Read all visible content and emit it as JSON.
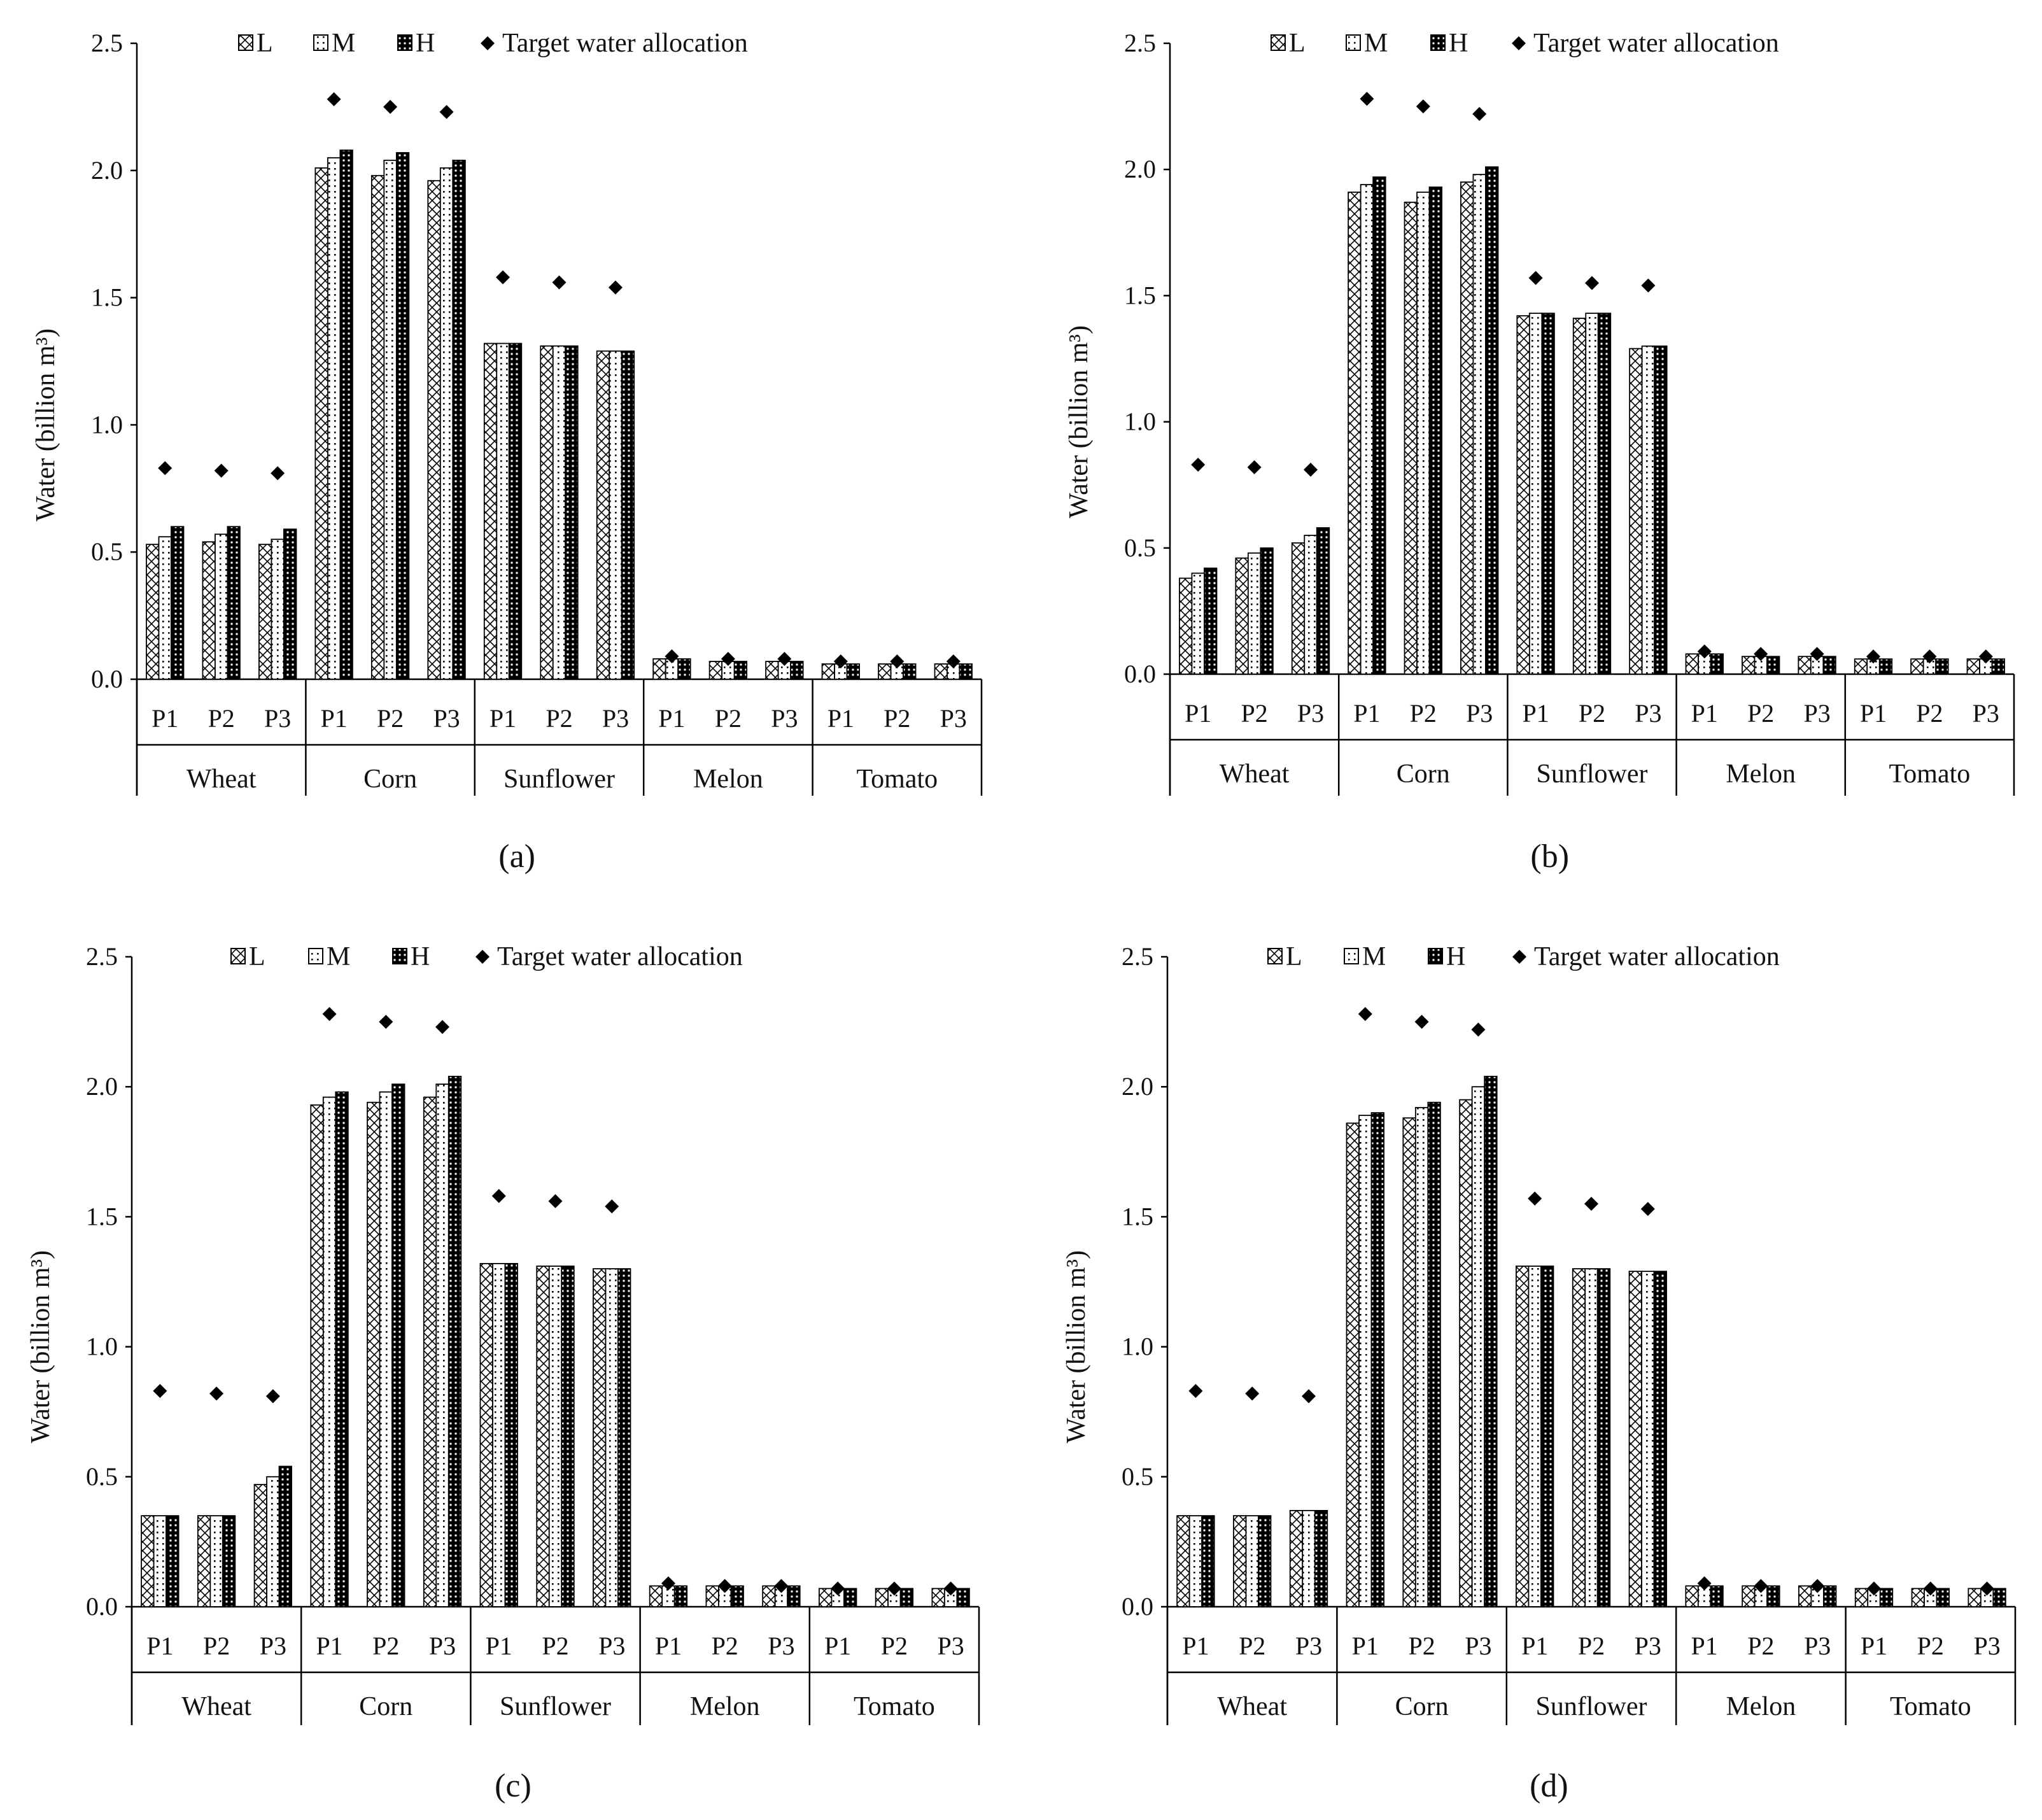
{
  "chart_data": [
    {
      "panel_label": "(a)",
      "type": "bar",
      "title": "",
      "xlabel": "",
      "ylabel": "Water (billion m³)",
      "ylim": [
        0,
        2.5
      ],
      "yticks": [
        "0.0",
        "0.5",
        "1.0",
        "1.5",
        "2.0",
        "2.5"
      ],
      "crops": [
        "Wheat",
        "Corn",
        "Sunflower",
        "Melon",
        "Tomato"
      ],
      "periods": [
        "P1",
        "P2",
        "P3"
      ],
      "legend": [
        "L",
        "M",
        "H",
        "Target water allocation"
      ],
      "series": [
        {
          "name": "L",
          "values": [
            0.53,
            0.54,
            0.53,
            2.01,
            1.98,
            1.96,
            1.32,
            1.31,
            1.29,
            0.08,
            0.07,
            0.07,
            0.06,
            0.06,
            0.06
          ]
        },
        {
          "name": "M",
          "values": [
            0.56,
            0.57,
            0.55,
            2.05,
            2.04,
            2.01,
            1.32,
            1.31,
            1.29,
            0.08,
            0.07,
            0.07,
            0.06,
            0.06,
            0.06
          ]
        },
        {
          "name": "H",
          "values": [
            0.6,
            0.6,
            0.59,
            2.08,
            2.07,
            2.04,
            1.32,
            1.31,
            1.29,
            0.08,
            0.07,
            0.07,
            0.06,
            0.06,
            0.06
          ]
        },
        {
          "name": "Target water allocation",
          "values": [
            0.83,
            0.82,
            0.81,
            2.28,
            2.25,
            2.23,
            1.58,
            1.56,
            1.54,
            0.09,
            0.08,
            0.08,
            0.07,
            0.07,
            0.07
          ]
        }
      ]
    },
    {
      "panel_label": "(b)",
      "type": "bar",
      "title": "",
      "xlabel": "",
      "ylabel": "Water (billion m³)",
      "ylim": [
        0,
        2.5
      ],
      "yticks": [
        "0.0",
        "0.5",
        "1.0",
        "1.5",
        "2.0",
        "2.5"
      ],
      "crops": [
        "Wheat",
        "Corn",
        "Sunflower",
        "Melon",
        "Tomato"
      ],
      "periods": [
        "P1",
        "P2",
        "P3"
      ],
      "legend": [
        "L",
        "M",
        "H",
        "Target water allocation"
      ],
      "series": [
        {
          "name": "L",
          "values": [
            0.38,
            0.46,
            0.52,
            1.91,
            1.87,
            1.95,
            1.42,
            1.41,
            1.29,
            0.08,
            0.07,
            0.07,
            0.06,
            0.06,
            0.06
          ]
        },
        {
          "name": "M",
          "values": [
            0.4,
            0.48,
            0.55,
            1.94,
            1.91,
            1.98,
            1.43,
            1.43,
            1.3,
            0.08,
            0.07,
            0.07,
            0.06,
            0.06,
            0.06
          ]
        },
        {
          "name": "H",
          "values": [
            0.42,
            0.5,
            0.58,
            1.97,
            1.93,
            2.01,
            1.43,
            1.43,
            1.3,
            0.08,
            0.07,
            0.07,
            0.06,
            0.06,
            0.06
          ]
        },
        {
          "name": "Target water allocation",
          "values": [
            0.83,
            0.82,
            0.81,
            2.28,
            2.25,
            2.22,
            1.57,
            1.55,
            1.54,
            0.09,
            0.08,
            0.08,
            0.07,
            0.07,
            0.07
          ]
        }
      ]
    },
    {
      "panel_label": "(c)",
      "type": "bar",
      "title": "",
      "xlabel": "",
      "ylabel": "Water (billion m³)",
      "ylim": [
        0,
        2.5
      ],
      "yticks": [
        "0.0",
        "0.5",
        "1.0",
        "1.5",
        "2.0",
        "2.5"
      ],
      "crops": [
        "Wheat",
        "Corn",
        "Sunflower",
        "Melon",
        "Tomato"
      ],
      "periods": [
        "P1",
        "P2",
        "P3"
      ],
      "legend": [
        "L",
        "M",
        "H",
        "Target water allocation"
      ],
      "series": [
        {
          "name": "L",
          "values": [
            0.35,
            0.35,
            0.47,
            1.93,
            1.94,
            1.96,
            1.32,
            1.31,
            1.3,
            0.08,
            0.08,
            0.08,
            0.07,
            0.07,
            0.07
          ]
        },
        {
          "name": "M",
          "values": [
            0.35,
            0.35,
            0.5,
            1.96,
            1.98,
            2.01,
            1.32,
            1.31,
            1.3,
            0.08,
            0.08,
            0.08,
            0.07,
            0.07,
            0.07
          ]
        },
        {
          "name": "H",
          "values": [
            0.35,
            0.35,
            0.54,
            1.98,
            2.01,
            2.04,
            1.32,
            1.31,
            1.3,
            0.08,
            0.08,
            0.08,
            0.07,
            0.07,
            0.07
          ]
        },
        {
          "name": "Target water allocation",
          "values": [
            0.83,
            0.82,
            0.81,
            2.28,
            2.25,
            2.23,
            1.58,
            1.56,
            1.54,
            0.09,
            0.08,
            0.08,
            0.07,
            0.07,
            0.07
          ]
        }
      ]
    },
    {
      "panel_label": "(d)",
      "type": "bar",
      "title": "",
      "xlabel": "",
      "ylabel": "Water (billion m³)",
      "ylim": [
        0,
        2.5
      ],
      "yticks": [
        "0.0",
        "0.5",
        "1.0",
        "1.5",
        "2.0",
        "2.5"
      ],
      "crops": [
        "Wheat",
        "Corn",
        "Sunflower",
        "Melon",
        "Tomato"
      ],
      "periods": [
        "P1",
        "P2",
        "P3"
      ],
      "legend": [
        "L",
        "M",
        "H",
        "Target water allocation"
      ],
      "series": [
        {
          "name": "L",
          "values": [
            0.35,
            0.35,
            0.37,
            1.86,
            1.88,
            1.95,
            1.31,
            1.3,
            1.29,
            0.08,
            0.08,
            0.08,
            0.07,
            0.07,
            0.07
          ]
        },
        {
          "name": "M",
          "values": [
            0.35,
            0.35,
            0.37,
            1.89,
            1.92,
            2.0,
            1.31,
            1.3,
            1.29,
            0.08,
            0.08,
            0.08,
            0.07,
            0.07,
            0.07
          ]
        },
        {
          "name": "H",
          "values": [
            0.35,
            0.35,
            0.37,
            1.9,
            1.94,
            2.04,
            1.31,
            1.3,
            1.29,
            0.08,
            0.08,
            0.08,
            0.07,
            0.07,
            0.07
          ]
        },
        {
          "name": "Target water allocation",
          "values": [
            0.83,
            0.82,
            0.81,
            2.28,
            2.25,
            2.22,
            1.57,
            1.55,
            1.53,
            0.09,
            0.08,
            0.08,
            0.07,
            0.07,
            0.07
          ]
        }
      ]
    }
  ]
}
